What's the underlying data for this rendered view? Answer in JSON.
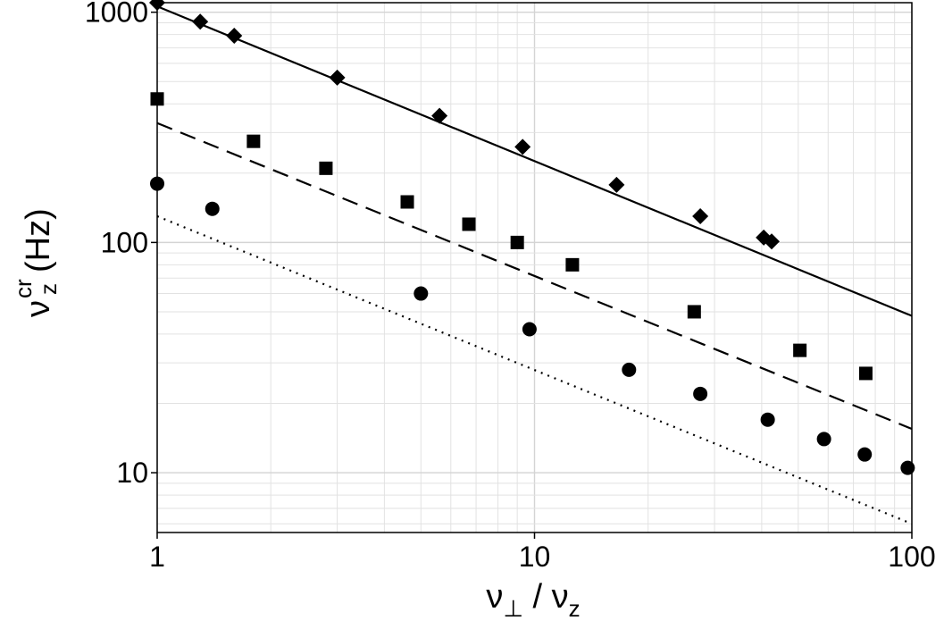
{
  "chart_data": {
    "type": "scatter",
    "xscale": "log",
    "yscale": "log",
    "xlim": [
      1,
      100
    ],
    "ylim": [
      5.5,
      1100
    ],
    "grid": true,
    "x_ticks": [
      1,
      10,
      100
    ],
    "x_tick_labels": [
      "1",
      "10",
      "100"
    ],
    "y_ticks": [
      10,
      100,
      1000
    ],
    "y_tick_labels": [
      "10",
      "100",
      "1000"
    ],
    "xlabel": {
      "symbol": "ν",
      "sub": "⊥",
      "sep": " / ",
      "symbol2": "ν",
      "sub2": "z"
    },
    "ylabel": {
      "symbol": "ν",
      "sub": "z",
      "sup": "cr",
      "unit": "(Hz)"
    },
    "series": [
      {
        "marker": "diamond",
        "x": [
          1.0,
          1.3,
          1.6,
          3.0,
          5.6,
          9.3,
          16.5,
          27.5,
          40.5,
          42.5
        ],
        "y": [
          1100,
          910,
          790,
          520,
          355,
          260,
          178,
          130,
          105,
          101
        ]
      },
      {
        "marker": "square",
        "x": [
          1.0,
          1.8,
          2.8,
          4.6,
          6.7,
          9.0,
          12.6,
          26.5,
          50.5,
          75.5
        ],
        "y": [
          420,
          275,
          210,
          150,
          120,
          100,
          80,
          50,
          34,
          27
        ]
      },
      {
        "marker": "circle",
        "x": [
          1.0,
          1.4,
          5.0,
          9.7,
          17.8,
          27.5,
          41.5,
          58.5,
          75.0,
          97.5
        ],
        "y": [
          180,
          140,
          60,
          42,
          28,
          22,
          17,
          14,
          12,
          10.5
        ]
      }
    ],
    "fit_lines": [
      {
        "style": "solid",
        "x": [
          1,
          100
        ],
        "y": [
          1060,
          48
        ]
      },
      {
        "style": "dashed",
        "x": [
          1,
          100
        ],
        "y": [
          330,
          15.5
        ]
      },
      {
        "style": "dotted",
        "x": [
          1,
          100
        ],
        "y": [
          130,
          6.0
        ]
      }
    ]
  }
}
